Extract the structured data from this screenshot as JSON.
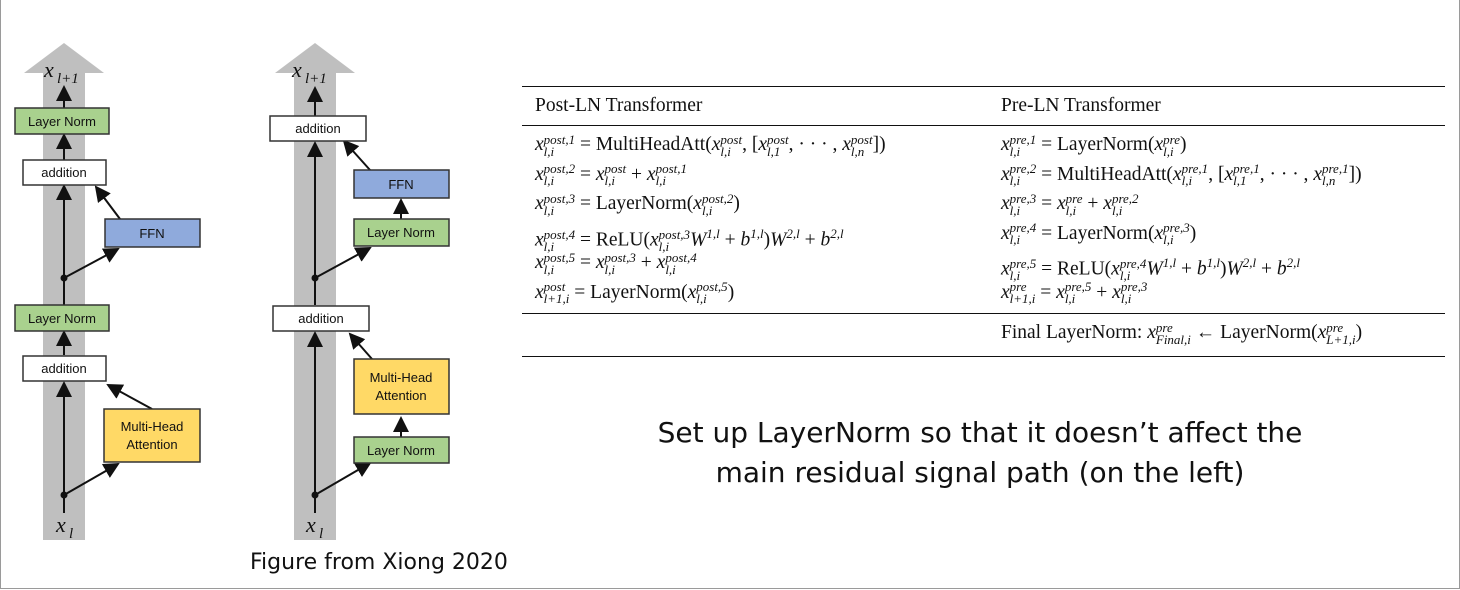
{
  "left_diagram": {
    "output_label": "x_{l+1}",
    "input_label": "x_l",
    "boxes": [
      "Layer Norm",
      "addition",
      "FFN",
      "Layer Norm",
      "addition",
      "Multi-Head Attention"
    ]
  },
  "right_diagram": {
    "output_label": "x_{l+1}",
    "input_label": "x_l",
    "boxes": [
      "addition",
      "FFN",
      "Layer Norm",
      "addition",
      "Multi-Head Attention",
      "Layer Norm"
    ]
  },
  "caption": "Figure from Xiong 2020",
  "table": {
    "header_left": "Post-LN Transformer",
    "header_right": "Pre-LN Transformer",
    "final_label": "Final LayerNorm:"
  },
  "note_line1": "Set up LayerNorm so that it doesn’t affect the",
  "note_line2": "main residual signal path (on the left)",
  "colors": {
    "green": "#a9d18e",
    "blue": "#8faadc",
    "yellow": "#ffd966",
    "gray": "#bfbfbf"
  }
}
